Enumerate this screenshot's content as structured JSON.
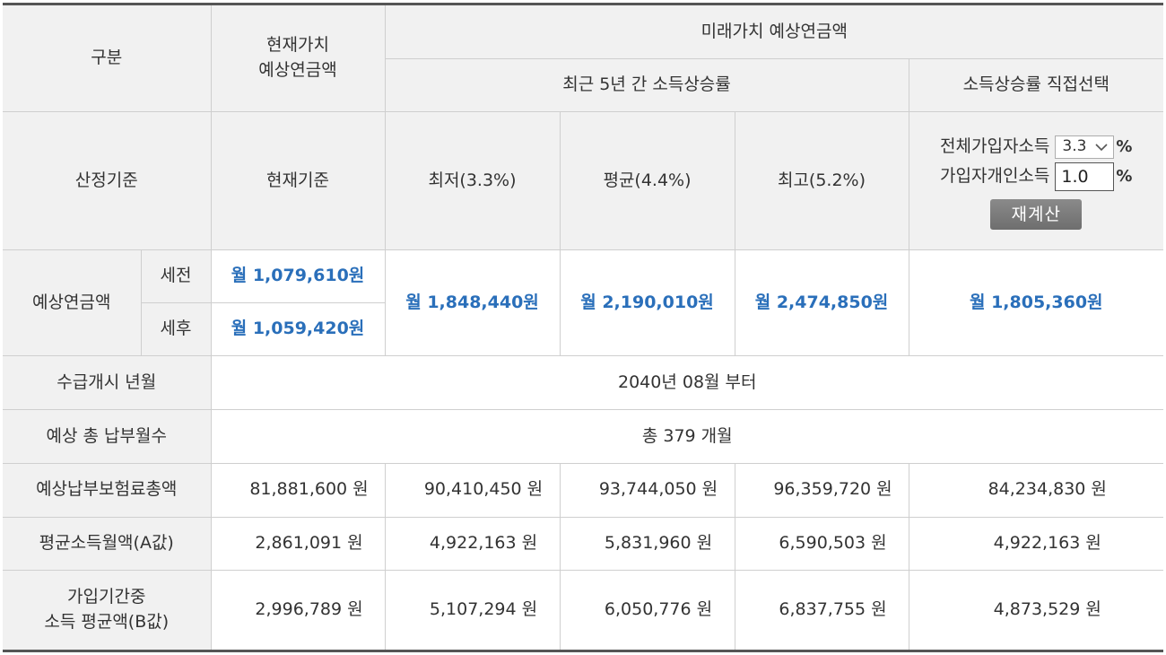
{
  "header": {
    "category": "구분",
    "present_value": [
      "현재가치",
      "예상연금액"
    ],
    "future_value": "미래가치 예상연금액",
    "recent_5yr": "최근 5년 간 소득상승률",
    "direct_select": "소득상승률 직접선택"
  },
  "basis": {
    "label": "산정기준",
    "current": "현재기준",
    "low": "최저(3.3%)",
    "avg": "평균(4.4%)",
    "high": "최고(5.2%)"
  },
  "controls": {
    "all_income_label": "전체가입자소득",
    "all_income_value": "3.3",
    "personal_income_label": "가입자개인소득",
    "personal_income_value": "1.0",
    "percent": "%",
    "recalc_button": "재계산"
  },
  "pension": {
    "label": "예상연금액",
    "pretax_label": "세전",
    "aftertax_label": "세후",
    "current_pretax": "월 1,079,610원",
    "current_aftertax": "월 1,059,420원",
    "low": "월 1,848,440원",
    "avg": "월 2,190,010원",
    "high": "월 2,474,850원",
    "direct": "월 1,805,360원"
  },
  "start": {
    "label": "수급개시 년월",
    "value": "2040년 08월 부터"
  },
  "months": {
    "label": "예상 총 납부월수",
    "value": "총 379 개월"
  },
  "premium_total": {
    "label": "예상납부보험료총액",
    "values": [
      "81,881,600 원",
      "90,410,450 원",
      "93,744,050 원",
      "96,359,720 원",
      "84,234,830 원"
    ]
  },
  "a_value": {
    "label": "평균소득월액(A값)",
    "values": [
      "2,861,091 원",
      "4,922,163 원",
      "5,831,960 원",
      "6,590,503 원",
      "4,922,163 원"
    ]
  },
  "b_value": {
    "label": [
      "가입기간중",
      "소득 평균액(B값)"
    ],
    "values": [
      "2,996,789 원",
      "5,107,294 원",
      "6,050,776 원",
      "6,837,755 원",
      "4,873,529 원"
    ]
  }
}
